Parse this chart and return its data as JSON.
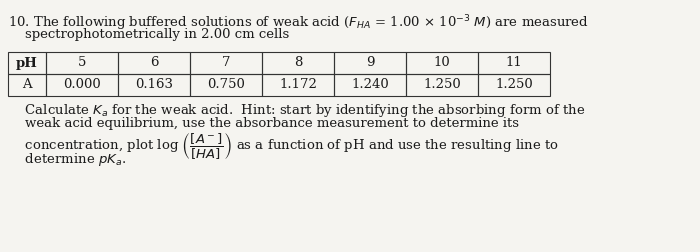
{
  "bg_color": "#f5f4f0",
  "text_color": "#1a1a1a",
  "font_size": 9.5,
  "title_part1": "10. The following buffered solutions of weak acid (",
  "title_math": "$F_{HA}$",
  "title_part2": " = 1.00 × 10",
  "title_sup": "⁻³",
  "title_part3": " M) are measured",
  "title_line2": "    spectrophotometrically in 2.00 cm cells",
  "table_headers": [
    "pH",
    "5",
    "6",
    "7",
    "8",
    "9",
    "10",
    "11"
  ],
  "table_row_label": "A",
  "table_row_values": [
    "0.000",
    "0.163",
    "0.750",
    "1.172",
    "1.240",
    "1.250",
    "1.250"
  ],
  "body_line1": "    Calculate $K_a$ for the weak acid.  Hint: start by identifying the absorbing form of the",
  "body_line2": "    weak acid equilibrium, use the absorbance measurement to determine its",
  "body_line3_pre": "    concentration, plot log ",
  "body_line3_math": "$\\left(\\dfrac{[A^-]}{[HA]}\\right)$",
  "body_line3_post": " as a function of pH and use the resulting line to",
  "body_line4": "    determine $pK_a$."
}
